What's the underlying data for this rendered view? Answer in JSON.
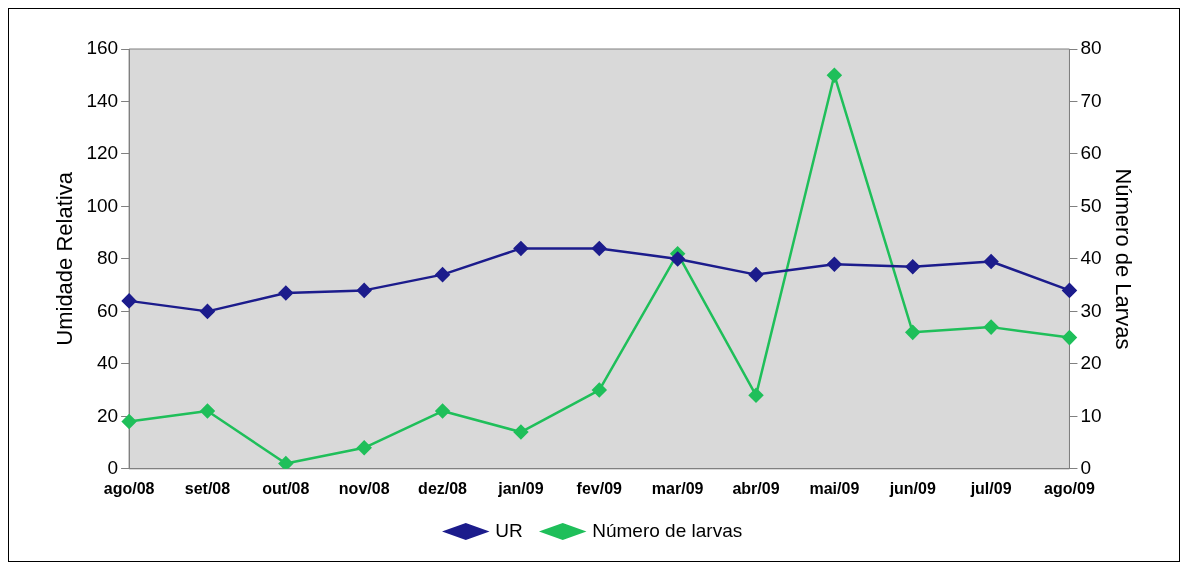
{
  "chart_data": {
    "type": "line",
    "ylabel": "Umidade Relativa",
    "y2label": "Número de Larvas",
    "categories": [
      "ago/08",
      "set/08",
      "out/08",
      "nov/08",
      "dez/08",
      "jan/09",
      "fev/09",
      "mar/09",
      "abr/09",
      "mai/09",
      "jun/09",
      "jul/09",
      "ago/09"
    ],
    "series": [
      {
        "name": "UR",
        "color": "#1c1c8c",
        "values": [
          64,
          60,
          67,
          68,
          74,
          84,
          84,
          80,
          74,
          78,
          77,
          79,
          68
        ]
      },
      {
        "name": "Número de larvas",
        "color": "#1fbf5a",
        "axis": "y2",
        "values": [
          9,
          11,
          1,
          4,
          11,
          7,
          15,
          41,
          14,
          75,
          26,
          27,
          25
        ]
      }
    ],
    "ylim": [
      0,
      160
    ],
    "yticks": [
      0,
      20,
      40,
      60,
      80,
      100,
      120,
      140,
      160
    ],
    "y2lim": [
      0,
      80
    ],
    "y2ticks": [
      0,
      10,
      20,
      30,
      40,
      50,
      60,
      70,
      80
    ],
    "grid": false,
    "legend": "bottom",
    "marker": "diamond",
    "line_style": "solid"
  }
}
